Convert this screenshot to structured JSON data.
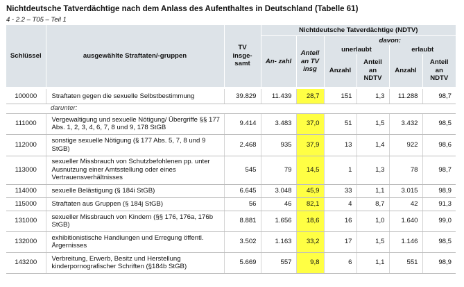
{
  "title": "Nichtdeutsche Tatverdächtige nach dem Anlass des Aufenthaltes in Deutschland (Tabelle 61)",
  "subtitle": "4 - 2.2 – T05 – Teil 1",
  "header": {
    "schluessel": "Schlüssel",
    "straftaten": "ausgewählte Straftaten/-gruppen",
    "tv": "TV insge- samt",
    "ndtv_group": "Nichtdeutsche Tatverdächtige (NDTV)",
    "davon": "davon:",
    "anzahl": "An- zahl",
    "anteil_tv": "Anteil an TV insg",
    "unerlaubt": "unerlaubt",
    "erlaubt": "erlaubt",
    "unerlaubt_anzahl": "Anzahl",
    "unerlaubt_anteil": "Anteil an NDTV",
    "erlaubt_anzahl": "Anzahl",
    "erlaubt_anteil": "Anteil an NDTV"
  },
  "darunter": "darunter:",
  "rows": [
    {
      "code": "100000",
      "label": "Straftaten gegen die sexuelle Selbstbestimmung",
      "tv": "39.829",
      "anzahl": "11.439",
      "anteil": "28,7",
      "un_anzahl": "151",
      "un_anteil": "1,3",
      "er_anzahl": "11.288",
      "er_anteil": "98,7"
    },
    {
      "code": "111000",
      "label": "Vergewaltigung und sexuelle Nötigung/ Übergriffe §§ 177 Abs. 1, 2, 3, 4, 6, 7, 8 und 9, 178 StGB",
      "tv": "9.414",
      "anzahl": "3.483",
      "anteil": "37,0",
      "un_anzahl": "51",
      "un_anteil": "1,5",
      "er_anzahl": "3.432",
      "er_anteil": "98,5"
    },
    {
      "code": "112000",
      "label": "sonstige sexuelle Nötigung (§ 177 Abs. 5, 7, 8 und 9 StGB)",
      "tv": "2.468",
      "anzahl": "935",
      "anteil": "37,9",
      "un_anzahl": "13",
      "un_anteil": "1,4",
      "er_anzahl": "922",
      "er_anteil": "98,6"
    },
    {
      "code": "113000",
      "label": "sexueller Missbrauch von Schutzbefohlenen pp. unter Ausnutzung einer Amtsstellung oder eines Vertrauensverhältnisses",
      "tv": "545",
      "anzahl": "79",
      "anteil": "14,5",
      "un_anzahl": "1",
      "un_anteil": "1,3",
      "er_anzahl": "78",
      "er_anteil": "98,7"
    },
    {
      "code": "114000",
      "label": "sexuelle Belästigung (§ 184i StGB)",
      "tv": "6.645",
      "anzahl": "3.048",
      "anteil": "45,9",
      "un_anzahl": "33",
      "un_anteil": "1,1",
      "er_anzahl": "3.015",
      "er_anteil": "98,9"
    },
    {
      "code": "115000",
      "label": "Straftaten aus Gruppen (§ 184j StGB)",
      "tv": "56",
      "anzahl": "46",
      "anteil": "82,1",
      "un_anzahl": "4",
      "un_anteil": "8,7",
      "er_anzahl": "42",
      "er_anteil": "91,3"
    },
    {
      "code": "131000",
      "label": "sexueller Missbrauch von Kindern (§§ 176, 176a, 176b StGB)",
      "tv": "8.881",
      "anzahl": "1.656",
      "anteil": "18,6",
      "un_anzahl": "16",
      "un_anteil": "1,0",
      "er_anzahl": "1.640",
      "er_anteil": "99,0"
    },
    {
      "code": "132000",
      "label": "exhibitionistische Handlungen und Erregung öffentl. Ärgernisses",
      "tv": "3.502",
      "anzahl": "1.163",
      "anteil": "33,2",
      "un_anzahl": "17",
      "un_anteil": "1,5",
      "er_anzahl": "1.146",
      "er_anteil": "98,5"
    },
    {
      "code": "143200",
      "label": "Verbreitung, Erwerb, Besitz und Herstellung kinderpornografischer Schriften (§184b StGB)",
      "tv": "5.669",
      "anzahl": "557",
      "anteil": "9,8",
      "un_anzahl": "6",
      "un_anteil": "1,1",
      "er_anzahl": "551",
      "er_anteil": "98,9"
    }
  ]
}
